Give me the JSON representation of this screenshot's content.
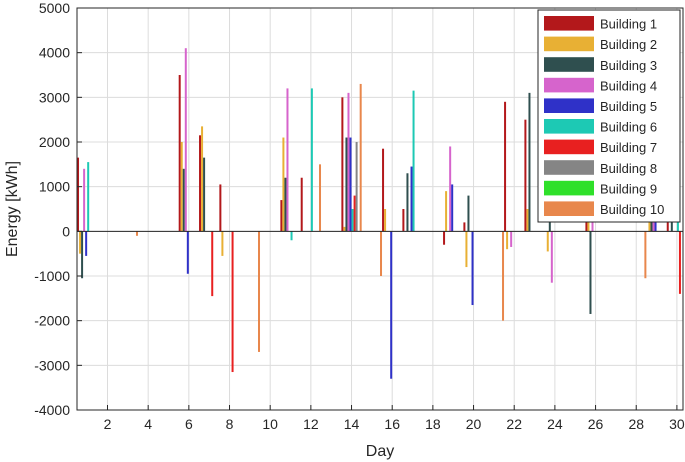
{
  "chart_data": {
    "type": "bar",
    "xlabel": "Day",
    "ylabel": "Energy [kWh]",
    "xlim": [
      0.5,
      30.3
    ],
    "ylim": [
      -4000,
      5000
    ],
    "xticks": [
      2,
      4,
      6,
      8,
      10,
      12,
      14,
      16,
      18,
      20,
      22,
      24,
      26,
      28,
      30
    ],
    "yticks": [
      -4000,
      -3000,
      -2000,
      -1000,
      0,
      1000,
      2000,
      3000,
      4000,
      5000
    ],
    "grid": true,
    "legend_position": "top-right",
    "bar_offset_step": 0.1,
    "series": [
      {
        "name": "Building 1",
        "color": "#b3181b",
        "points": [
          [
            1,
            1650
          ],
          [
            6,
            3500
          ],
          [
            7,
            2150
          ],
          [
            8,
            1050
          ],
          [
            11,
            700
          ],
          [
            12,
            1200
          ],
          [
            14,
            3000
          ],
          [
            16,
            1850
          ],
          [
            17,
            500
          ],
          [
            19,
            -300
          ],
          [
            20,
            200
          ],
          [
            22,
            2900
          ],
          [
            23,
            2500
          ],
          [
            26,
            700
          ],
          [
            30,
            500
          ]
        ]
      },
      {
        "name": "Building 2",
        "color": "#e8b034",
        "points": [
          [
            1,
            -500
          ],
          [
            6,
            2000
          ],
          [
            7,
            2350
          ],
          [
            8,
            -550
          ],
          [
            11,
            2100
          ],
          [
            14,
            100
          ],
          [
            16,
            500
          ],
          [
            19,
            900
          ],
          [
            20,
            -800
          ],
          [
            22,
            -400
          ],
          [
            23,
            500
          ],
          [
            24,
            -450
          ],
          [
            26,
            500
          ],
          [
            29,
            1300
          ]
        ]
      },
      {
        "name": "Building 3",
        "color": "#2f4f4f",
        "points": [
          [
            1,
            -1050
          ],
          [
            6,
            1400
          ],
          [
            7,
            1650
          ],
          [
            11,
            1200
          ],
          [
            14,
            2100
          ],
          [
            17,
            1300
          ],
          [
            20,
            800
          ],
          [
            23,
            3100
          ],
          [
            24,
            500
          ],
          [
            26,
            -1850
          ],
          [
            29,
            1000
          ],
          [
            30,
            800
          ]
        ]
      },
      {
        "name": "Building 4",
        "color": "#d664cc",
        "points": [
          [
            1,
            1400
          ],
          [
            6,
            4100
          ],
          [
            11,
            3200
          ],
          [
            14,
            3100
          ],
          [
            19,
            1900
          ],
          [
            22,
            -350
          ],
          [
            24,
            -1150
          ],
          [
            26,
            900
          ],
          [
            29,
            1200
          ]
        ]
      },
      {
        "name": "Building 5",
        "color": "#2f31c8",
        "points": [
          [
            1,
            -550
          ],
          [
            6,
            -950
          ],
          [
            14,
            2100
          ],
          [
            16,
            -3300
          ],
          [
            17,
            1450
          ],
          [
            19,
            1050
          ],
          [
            20,
            -1650
          ],
          [
            29,
            700
          ]
        ]
      },
      {
        "name": "Building 6",
        "color": "#1dc9b4",
        "points": [
          [
            1,
            1550
          ],
          [
            11,
            -200
          ],
          [
            12,
            3200
          ],
          [
            14,
            500
          ],
          [
            17,
            3150
          ],
          [
            30,
            600
          ]
        ]
      },
      {
        "name": "Building 7",
        "color": "#e82020",
        "points": [
          [
            7,
            -1450
          ],
          [
            8,
            -3150
          ],
          [
            14,
            800
          ],
          [
            30,
            -1400
          ]
        ]
      },
      {
        "name": "Building 8",
        "color": "#858585",
        "points": [
          [
            14,
            2000
          ]
        ]
      },
      {
        "name": "Building 9",
        "color": "#2fe02a",
        "points": []
      },
      {
        "name": "Building 10",
        "color": "#e8874c",
        "points": [
          [
            3,
            -100
          ],
          [
            9,
            -2700
          ],
          [
            12,
            1500
          ],
          [
            14,
            3300
          ],
          [
            15,
            -1000
          ],
          [
            21,
            -2000
          ],
          [
            28,
            -1050
          ]
        ]
      }
    ]
  }
}
